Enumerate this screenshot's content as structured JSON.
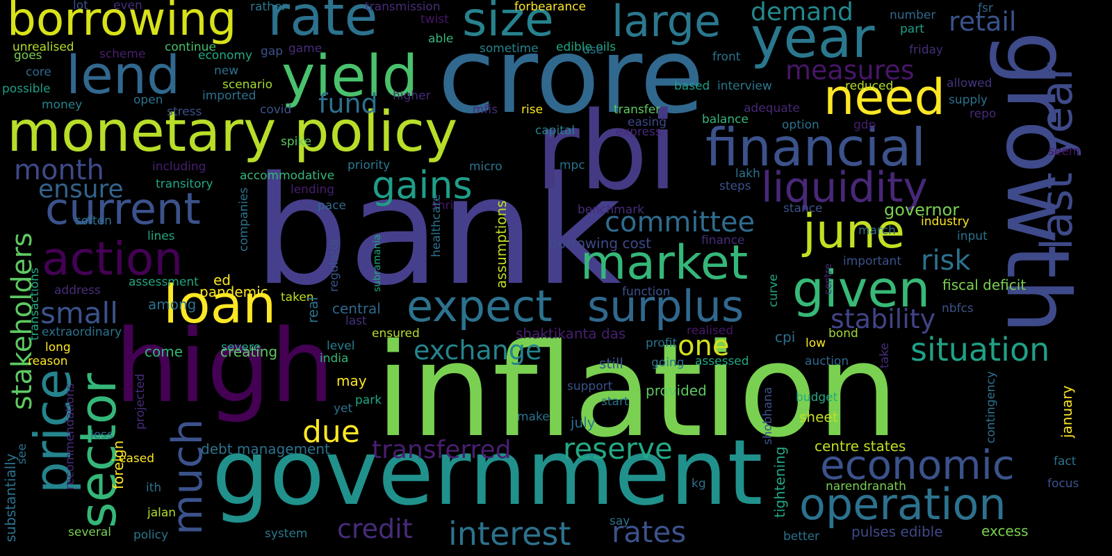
{
  "words": [
    {
      "text": "bank",
      "color": "#463f8c"
    },
    {
      "text": "inflation",
      "color": "#7ad151"
    },
    {
      "text": "crore",
      "color": "#31688e"
    },
    {
      "text": "rbi",
      "color": "#443a83"
    },
    {
      "text": "high",
      "color": "#440154"
    },
    {
      "text": "government",
      "color": "#21918c"
    },
    {
      "text": "growth",
      "color": "#3e4a89"
    },
    {
      "text": "monetary policy",
      "color": "#b8de29"
    },
    {
      "text": "rate",
      "color": "#2c728e"
    },
    {
      "text": "borrowing",
      "color": "#d8e219"
    },
    {
      "text": "lend",
      "color": "#31688e"
    },
    {
      "text": "yield",
      "color": "#4ac16d"
    },
    {
      "text": "size",
      "color": "#26828e"
    },
    {
      "text": "large",
      "color": "#2a788e"
    },
    {
      "text": "year",
      "color": "#2a788e"
    },
    {
      "text": "need",
      "color": "#fde725"
    },
    {
      "text": "financial",
      "color": "#3b528b"
    },
    {
      "text": "liquidity",
      "color": "#482878"
    },
    {
      "text": "june",
      "color": "#c2df23"
    },
    {
      "text": "market",
      "color": "#35b779"
    },
    {
      "text": "given",
      "color": "#38b977"
    },
    {
      "text": "surplus",
      "color": "#31688e"
    },
    {
      "text": "expect",
      "color": "#2c728e"
    },
    {
      "text": "economic",
      "color": "#3b528b"
    },
    {
      "text": "operation",
      "color": "#2c728e"
    },
    {
      "text": "current",
      "color": "#3b528b"
    },
    {
      "text": "action",
      "color": "#440154"
    },
    {
      "text": "loan",
      "color": "#fde725"
    },
    {
      "text": "gains",
      "color": "#1f9e89"
    },
    {
      "text": "situation",
      "color": "#1fa187"
    },
    {
      "text": "interest",
      "color": "#2c728e"
    },
    {
      "text": "rates",
      "color": "#3b528b"
    },
    {
      "text": "credit",
      "color": "#472c7a"
    },
    {
      "text": "reserve",
      "color": "#22a884"
    },
    {
      "text": "transferred",
      "color": "#481f70"
    },
    {
      "text": "exchange",
      "color": "#25848e"
    },
    {
      "text": "stability",
      "color": "#414487"
    },
    {
      "text": "committee",
      "color": "#2f6c8e"
    },
    {
      "text": "measures",
      "color": "#481668"
    },
    {
      "text": "retail",
      "color": "#3a538b"
    },
    {
      "text": "demand",
      "color": "#23888e"
    },
    {
      "text": "fund",
      "color": "#2d708e"
    },
    {
      "text": "month",
      "color": "#3e4a89"
    },
    {
      "text": "ensure",
      "color": "#33638d"
    },
    {
      "text": "small",
      "color": "#3b528b"
    },
    {
      "text": "due",
      "color": "#fde725"
    },
    {
      "text": "one",
      "color": "#d2e21b"
    },
    {
      "text": "risk",
      "color": "#2c728e"
    },
    {
      "text": "last year",
      "color": "#3e4a89"
    },
    {
      "text": "price",
      "color": "#25848e"
    },
    {
      "text": "sector",
      "color": "#35b779"
    },
    {
      "text": "much",
      "color": "#3b528b"
    },
    {
      "text": "stakeholders",
      "color": "#5ec962"
    }
  ],
  "small_words": [
    {
      "text": "lot",
      "color": "#3b528b"
    },
    {
      "text": "even",
      "color": "#472d7b"
    },
    {
      "text": "rather",
      "color": "#2a788e"
    },
    {
      "text": "transmission",
      "color": "#472c7a"
    },
    {
      "text": "forbearance",
      "color": "#fde725"
    },
    {
      "text": "twist",
      "color": "#481668"
    },
    {
      "text": "number",
      "color": "#31688e"
    },
    {
      "text": "fsr",
      "color": "#31688e"
    },
    {
      "text": "part",
      "color": "#1fa187"
    },
    {
      "text": "unrealised",
      "color": "#b5de2b"
    },
    {
      "text": "goes",
      "color": "#7ad151"
    },
    {
      "text": "continue",
      "color": "#48c16e"
    },
    {
      "text": "economy",
      "color": "#22a884"
    },
    {
      "text": "scheme",
      "color": "#481f70"
    },
    {
      "text": "gap",
      "color": "#3b528b"
    },
    {
      "text": "game",
      "color": "#472c7a"
    },
    {
      "text": "able",
      "color": "#35b779"
    },
    {
      "text": "sometime",
      "color": "#25848e"
    },
    {
      "text": "edible oils",
      "color": "#22a884"
    },
    {
      "text": "use",
      "color": "#2a788e"
    },
    {
      "text": "friday",
      "color": "#472d7b"
    },
    {
      "text": "front",
      "color": "#2c728e"
    },
    {
      "text": "core",
      "color": "#31688e"
    },
    {
      "text": "new",
      "color": "#2c728e"
    },
    {
      "text": "scenario",
      "color": "#a5db36"
    },
    {
      "text": "imported",
      "color": "#2c728e"
    },
    {
      "text": "possible",
      "color": "#1f9e89"
    },
    {
      "text": "higher",
      "color": "#472c7a"
    },
    {
      "text": "based",
      "color": "#1f9e89"
    },
    {
      "text": "interview",
      "color": "#2a788e"
    },
    {
      "text": "reduced",
      "color": "#b5de2b"
    },
    {
      "text": "allowed",
      "color": "#46327e"
    },
    {
      "text": "supply",
      "color": "#2c728e"
    },
    {
      "text": "repo",
      "color": "#482878"
    },
    {
      "text": "money",
      "color": "#26828e"
    },
    {
      "text": "open",
      "color": "#2c728e"
    },
    {
      "text": "stress",
      "color": "#3b528b"
    },
    {
      "text": "covid",
      "color": "#3b528b"
    },
    {
      "text": "mfis",
      "color": "#472c7a"
    },
    {
      "text": "rise",
      "color": "#fde725"
    },
    {
      "text": "transfer",
      "color": "#5ec962"
    },
    {
      "text": "adequate",
      "color": "#482878"
    },
    {
      "text": "gdp",
      "color": "#481f70"
    },
    {
      "text": "balance",
      "color": "#35b779"
    },
    {
      "text": "option",
      "color": "#2c728e"
    },
    {
      "text": "easing",
      "color": "#3e4a89"
    },
    {
      "text": "express",
      "color": "#482878"
    },
    {
      "text": "capital",
      "color": "#26828e"
    },
    {
      "text": "spike",
      "color": "#5ec962"
    },
    {
      "text": "including",
      "color": "#481f70"
    },
    {
      "text": "priority",
      "color": "#2a788e"
    },
    {
      "text": "micro",
      "color": "#2c728e"
    },
    {
      "text": "mpc",
      "color": "#2c728e"
    },
    {
      "text": "accommodative",
      "color": "#35b779"
    },
    {
      "text": "lakh",
      "color": "#2c728e"
    },
    {
      "text": "steps",
      "color": "#3b528b"
    },
    {
      "text": "transitory",
      "color": "#22a884"
    },
    {
      "text": "lending",
      "color": "#481f70"
    },
    {
      "text": "pace",
      "color": "#31688e"
    },
    {
      "text": "shri",
      "color": "#481668"
    },
    {
      "text": "benchmark",
      "color": "#472c7a"
    },
    {
      "text": "stance",
      "color": "#3b528b"
    },
    {
      "text": "governor",
      "color": "#7ad151"
    },
    {
      "text": "march",
      "color": "#2c728e"
    },
    {
      "text": "industry",
      "color": "#fde725"
    },
    {
      "text": "soften",
      "color": "#2c728e"
    },
    {
      "text": "lines",
      "color": "#22a884"
    },
    {
      "text": "borrowing cost",
      "color": "#3e4a89"
    },
    {
      "text": "finance",
      "color": "#472c7a"
    },
    {
      "text": "input",
      "color": "#2c728e"
    },
    {
      "text": "important",
      "color": "#3b528b"
    },
    {
      "text": "address",
      "color": "#472c7a"
    },
    {
      "text": "assessment",
      "color": "#22a884"
    },
    {
      "text": "ed",
      "color": "#fde725"
    },
    {
      "text": "pandemic",
      "color": "#fde725"
    },
    {
      "text": "among",
      "color": "#2c728e"
    },
    {
      "text": "taken",
      "color": "#c2df23"
    },
    {
      "text": "function",
      "color": "#3b528b"
    },
    {
      "text": "fiscal deficit",
      "color": "#7ad151"
    },
    {
      "text": "nbfcs",
      "color": "#3b528b"
    },
    {
      "text": "central",
      "color": "#31688e"
    },
    {
      "text": "last",
      "color": "#46327e"
    },
    {
      "text": "shaktikanta das",
      "color": "#481f70"
    },
    {
      "text": "realised",
      "color": "#481668"
    },
    {
      "text": "cpi",
      "color": "#2c728e"
    },
    {
      "text": "low",
      "color": "#fde725"
    },
    {
      "text": "bond",
      "color": "#a5db36"
    },
    {
      "text": "extraordinary",
      "color": "#2c728e"
    },
    {
      "text": "come",
      "color": "#35b779"
    },
    {
      "text": "severe",
      "color": "#22a884"
    },
    {
      "text": "creating",
      "color": "#5ec962"
    },
    {
      "text": "ensured",
      "color": "#b5de2b"
    },
    {
      "text": "level",
      "color": "#26828e"
    },
    {
      "text": "india",
      "color": "#35b779"
    },
    {
      "text": "profit",
      "color": "#2c728e"
    },
    {
      "text": "going",
      "color": "#2c728e"
    },
    {
      "text": "assessed",
      "color": "#22a884"
    },
    {
      "text": "auction",
      "color": "#31688e"
    },
    {
      "text": "long",
      "color": "#fde725"
    },
    {
      "text": "reason",
      "color": "#fde725"
    },
    {
      "text": "still",
      "color": "#3b528b"
    },
    {
      "text": "support",
      "color": "#3b528b"
    },
    {
      "text": "provided",
      "color": "#5ec962"
    },
    {
      "text": "may",
      "color": "#fde725"
    },
    {
      "text": "park",
      "color": "#22a884"
    },
    {
      "text": "start",
      "color": "#2c728e"
    },
    {
      "text": "budget",
      "color": "#22a884"
    },
    {
      "text": "sheet",
      "color": "#c2df23"
    },
    {
      "text": "yet",
      "color": "#2c728e"
    },
    {
      "text": "make",
      "color": "#2c728e"
    },
    {
      "text": "july",
      "color": "#2c728e"
    },
    {
      "text": "less",
      "color": "#2c728e"
    },
    {
      "text": "debt management",
      "color": "#2c728e"
    },
    {
      "text": "centre states",
      "color": "#c2df23"
    },
    {
      "text": "eased",
      "color": "#fde725"
    },
    {
      "text": "ith",
      "color": "#2c728e"
    },
    {
      "text": "jalan",
      "color": "#b5de2b"
    },
    {
      "text": "several",
      "color": "#7ad151"
    },
    {
      "text": "policy",
      "color": "#2a788e"
    },
    {
      "text": "system",
      "color": "#2a788e"
    },
    {
      "text": "say",
      "color": "#2c728e"
    },
    {
      "text": "kg",
      "color": "#2c728e"
    },
    {
      "text": "narendranath",
      "color": "#7ad151"
    },
    {
      "text": "better",
      "color": "#2c728e"
    },
    {
      "text": "pulses edible",
      "color": "#3e4a89"
    },
    {
      "text": "excess",
      "color": "#7ad151"
    },
    {
      "text": "fact",
      "color": "#2c728e"
    },
    {
      "text": "focus",
      "color": "#3b528b"
    },
    {
      "text": "seem",
      "color": "#481668"
    }
  ],
  "vertical_words": [
    {
      "text": "companies",
      "color": "#2c728e"
    },
    {
      "text": "healthcare",
      "color": "#2c728e"
    },
    {
      "text": "assumptions",
      "color": "#c2df23"
    },
    {
      "text": "regulator",
      "color": "#3b528b"
    },
    {
      "text": "real",
      "color": "#2c728e"
    },
    {
      "text": "transactions",
      "color": "#22a884"
    },
    {
      "text": "recommendations",
      "color": "#472c7a"
    },
    {
      "text": "substantially",
      "color": "#2c728e"
    },
    {
      "text": "see",
      "color": "#2c728e"
    },
    {
      "text": "foreign",
      "color": "#fde725"
    },
    {
      "text": "projected",
      "color": "#472c7a"
    },
    {
      "text": "shobhana",
      "color": "#3b528b"
    },
    {
      "text": "tightening",
      "color": "#22a884"
    },
    {
      "text": "contingency",
      "color": "#2c728e"
    },
    {
      "text": "january",
      "color": "#fde725"
    },
    {
      "text": "take",
      "color": "#472c7a"
    },
    {
      "text": "curve",
      "color": "#22a884"
    },
    {
      "text": "centre",
      "color": "#472c7a"
    },
    {
      "text": "subramania",
      "color": "#22a884"
    }
  ]
}
